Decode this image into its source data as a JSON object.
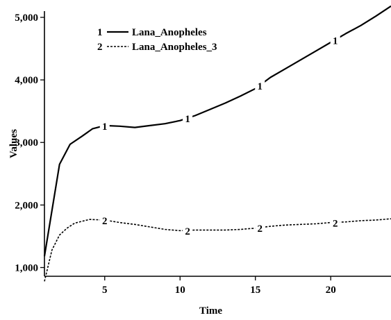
{
  "chart_data": {
    "type": "line",
    "title": "",
    "xlabel": "Time",
    "ylabel": "Values",
    "xlim": [
      1,
      24
    ],
    "ylim": [
      650,
      5000
    ],
    "x_ticks": [
      5,
      10,
      15,
      20
    ],
    "x_tick_labels": [
      "5",
      "10",
      "15",
      "20"
    ],
    "y_ticks": [
      1000,
      2000,
      3000,
      4000,
      5000
    ],
    "y_tick_labels": [
      "1,000",
      "2,000",
      "3,000",
      "4,000",
      "5,000"
    ],
    "grid": false,
    "legend_position": "top-left",
    "series": [
      {
        "name": "Lana_Anopheles",
        "marker": "1",
        "style": "solid",
        "color": "#000000",
        "x": [
          1,
          2,
          2.7,
          3.5,
          4.2,
          5,
          6,
          7,
          8,
          9,
          10,
          11,
          12,
          13,
          14,
          15,
          16,
          17,
          18,
          19,
          20,
          21,
          22,
          23,
          24
        ],
        "y": [
          1180,
          2650,
          2970,
          3100,
          3220,
          3270,
          3260,
          3240,
          3270,
          3300,
          3350,
          3430,
          3530,
          3630,
          3740,
          3860,
          4040,
          4180,
          4320,
          4460,
          4600,
          4740,
          4870,
          5020,
          5180
        ],
        "marker_x": [
          5,
          10.5,
          15.3,
          20.3
        ]
      },
      {
        "name": "Lana_Anopheles_3",
        "marker": "2",
        "style": "dashed",
        "color": "#000000",
        "x": [
          1,
          1.5,
          2,
          2.5,
          3,
          3.5,
          4,
          5,
          6,
          7,
          8,
          9,
          10,
          11,
          12,
          13,
          14,
          15,
          16,
          17,
          18,
          19,
          20,
          21,
          22,
          23,
          24
        ],
        "y": [
          780,
          1280,
          1520,
          1630,
          1710,
          1740,
          1770,
          1760,
          1720,
          1690,
          1650,
          1610,
          1590,
          1600,
          1600,
          1600,
          1610,
          1630,
          1660,
          1680,
          1690,
          1700,
          1720,
          1730,
          1750,
          1760,
          1780
        ],
        "marker_x": [
          5,
          10.5,
          15.3,
          20.3
        ]
      }
    ]
  }
}
